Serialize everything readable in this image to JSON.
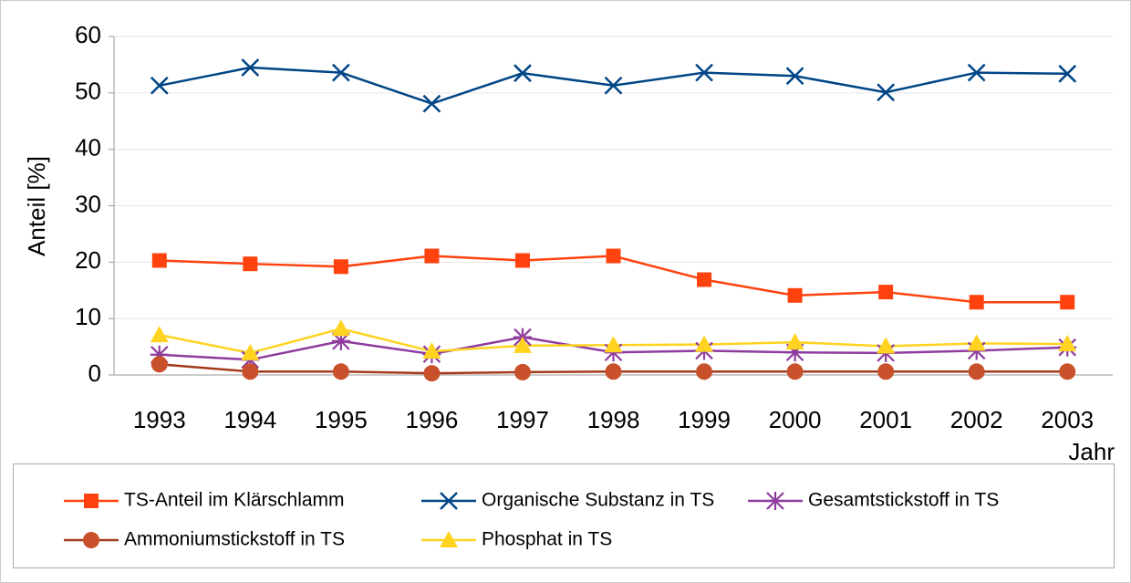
{
  "chart_data": {
    "type": "line",
    "y_label": "Anteil [%]",
    "x_label": "Jahr",
    "categories": [
      "1993",
      "1994",
      "1995",
      "1996",
      "1997",
      "1998",
      "1999",
      "2000",
      "2001",
      "2002",
      "2003"
    ],
    "series": [
      {
        "name": "TS-Anteil im Klärschlamm",
        "color": "#ff420e",
        "values": [
          20.3,
          19.7,
          19.2,
          21.1,
          20.3,
          21.1,
          16.9,
          14.1,
          14.7,
          12.9,
          12.9
        ]
      },
      {
        "name": "Organische Substanz in TS",
        "color": "#004586",
        "values": [
          51.3,
          54.5,
          53.6,
          48.1,
          53.5,
          51.3,
          53.6,
          53.0,
          50.1,
          53.6,
          53.4
        ]
      },
      {
        "name": "Gesamtstickstoff in TS",
        "color": "#8e3c9e",
        "values": [
          3.6,
          2.7,
          6.0,
          3.7,
          6.7,
          4.0,
          4.3,
          4.0,
          3.9,
          4.3,
          4.9
        ]
      },
      {
        "name": "Ammoniumstickstoff in TS",
        "color": "#a33a1c",
        "values": [
          1.9,
          0.6,
          0.6,
          0.3,
          0.5,
          0.6,
          0.6,
          0.6,
          0.6,
          0.6,
          0.6
        ]
      },
      {
        "name": "Phosphat in TS",
        "color": "#ffd320",
        "values": [
          7.1,
          3.9,
          8.2,
          4.2,
          5.2,
          5.3,
          5.4,
          5.8,
          5.1,
          5.6,
          5.5
        ]
      }
    ],
    "ylim": [
      0,
      60
    ],
    "yticks": [
      0,
      10,
      20,
      30,
      40,
      50,
      60
    ],
    "grid": true,
    "legend": "bottom"
  }
}
